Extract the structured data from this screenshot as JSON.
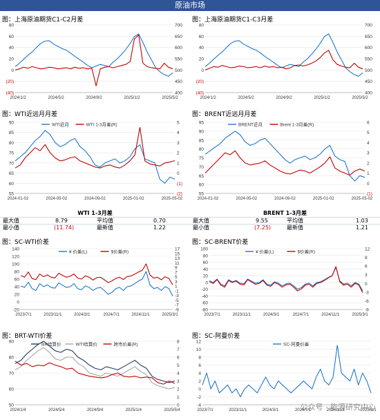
{
  "page_title": "原油市场",
  "colors": {
    "blue": "#1f77c9",
    "red": "#c00000",
    "navy": "#203864",
    "grey": "#a6a6a6",
    "gridblue": "#2f5597",
    "band": "#2f5597"
  },
  "watermark": "公众号 · 能源研究中心",
  "stats": [
    {
      "title": "WTI 1-3月差",
      "rows": [
        {
          "l1": "最大值",
          "v1": "8.79",
          "l2": "平均值",
          "v2": "0.70"
        },
        {
          "l1": "最小值",
          "v1": "(11.74)",
          "l2": "最新值",
          "v2": "1.22"
        }
      ]
    },
    {
      "title": "BRENT 1-3月差",
      "rows": [
        {
          "l1": "最大值",
          "v1": "9.55",
          "l2": "平均值",
          "v2": "1.03"
        },
        {
          "l1": "最小值",
          "v1": "(7.25)",
          "l2": "最新值",
          "v2": "1.21"
        }
      ]
    }
  ],
  "chart_data": [
    {
      "id": "c1",
      "type": "line",
      "title": "图：上海原油期货C1-C2月差",
      "x_ticks": [
        "2024/1/2",
        "2024/5/2",
        "2024/9/2",
        "2025/1/2",
        "2025/5/2"
      ],
      "y_left_ticks": [
        "80",
        "60",
        "40",
        "20",
        "0",
        "(20)",
        "(40)"
      ],
      "ylim_left": [
        -40,
        80
      ],
      "y_right_ticks": [
        "700",
        "650",
        "600",
        "550",
        "500",
        "450",
        "400"
      ],
      "ylim_right": [
        400,
        700
      ],
      "series": [
        {
          "axis": "right",
          "color": "blue",
          "values": [
            515,
            530,
            548,
            565,
            580,
            600,
            618,
            628,
            630,
            615,
            605,
            595,
            588,
            575,
            560,
            548,
            535,
            520,
            510,
            518,
            525,
            520,
            515,
            535,
            550,
            570,
            592,
            618,
            648,
            660,
            622,
            580,
            545,
            510,
            492,
            480,
            472,
            488
          ]
        },
        {
          "axis": "left",
          "color": "red",
          "values": [
            0,
            2,
            5,
            3,
            6,
            4,
            2,
            3,
            5,
            4,
            2,
            3,
            4,
            2,
            5,
            3,
            4,
            2,
            3,
            -28,
            2,
            5,
            6,
            4,
            6,
            8,
            10,
            15,
            55,
            62,
            12,
            6,
            4,
            3,
            2,
            12,
            5,
            2
          ]
        }
      ]
    },
    {
      "id": "c2",
      "type": "line",
      "title": "图：上海原油期货C1-C3月差",
      "x_ticks": [
        "2024/1/2",
        "2024/5/2",
        "2024/9/2",
        "2025/1/2",
        "2025/5/2"
      ],
      "y_left_ticks": [
        "80",
        "60",
        "40",
        "20",
        "0",
        "(20)",
        "(40)"
      ],
      "ylim_left": [
        -40,
        80
      ],
      "y_right_ticks": [
        "700",
        "650",
        "600",
        "550",
        "500",
        "450",
        "400"
      ],
      "ylim_right": [
        400,
        700
      ],
      "series": [
        {
          "axis": "right",
          "color": "blue",
          "values": [
            515,
            530,
            548,
            565,
            580,
            600,
            618,
            628,
            630,
            615,
            605,
            595,
            588,
            575,
            560,
            548,
            535,
            520,
            510,
            518,
            525,
            520,
            515,
            535,
            550,
            570,
            592,
            618,
            648,
            660,
            622,
            580,
            545,
            510,
            492,
            480,
            472,
            488
          ]
        },
        {
          "axis": "left",
          "color": "red",
          "values": [
            0,
            3,
            6,
            5,
            8,
            6,
            4,
            5,
            7,
            6,
            4,
            5,
            6,
            4,
            7,
            5,
            6,
            4,
            5,
            2,
            4,
            8,
            9,
            7,
            9,
            12,
            16,
            22,
            30,
            35,
            18,
            10,
            7,
            5,
            4,
            12,
            5,
            2
          ]
        }
      ]
    },
    {
      "id": "c3",
      "type": "line",
      "title": "图：WTI近远月月差",
      "x_ticks": [
        "2024-01-02",
        "2024-05-02",
        "2024-09-02",
        "2025-01-02",
        "2025-05-02"
      ],
      "y_left_ticks": [
        "90",
        "85",
        "80",
        "75",
        "70",
        "65",
        "60",
        "55"
      ],
      "ylim_left": [
        55,
        90
      ],
      "y_right_ticks": [
        "5",
        "4",
        "3",
        "2",
        "1",
        "0",
        "(1)",
        "(2)"
      ],
      "ylim_right": [
        -2,
        5
      ],
      "legend": [
        "WTI近月",
        "WTI 1-3月差(R)"
      ],
      "series": [
        {
          "axis": "left",
          "color": "blue",
          "values": [
            71,
            73,
            75,
            78,
            81,
            83,
            86,
            84,
            80,
            78,
            79,
            81,
            82,
            78,
            76,
            73,
            69,
            68,
            70,
            71,
            72,
            70,
            71,
            73,
            77,
            79,
            72,
            71,
            70,
            62,
            60,
            63,
            62
          ]
        },
        {
          "axis": "right",
          "color": "red",
          "values": [
            0.5,
            0.8,
            1.5,
            2.0,
            2.5,
            2.2,
            2.8,
            2.0,
            1.5,
            1.2,
            1.3,
            1.5,
            1.6,
            1.2,
            1.0,
            0.8,
            0.6,
            0.5,
            0.7,
            0.8,
            0.6,
            0.5,
            0.8,
            1.2,
            1.8,
            4.5,
            1.2,
            0.9,
            0.8,
            0.7,
            1.0,
            1.1,
            1.22
          ]
        }
      ]
    },
    {
      "id": "c4",
      "type": "line",
      "title": "图：BRENT近远月月差",
      "x_ticks": [
        "2024-01-02",
        "2024-05-02",
        "2024-09-02",
        "2025-01-02",
        "2025-05-02"
      ],
      "y_left_ticks": [
        "95",
        "90",
        "85",
        "80",
        "75",
        "70",
        "65",
        "60",
        "55"
      ],
      "ylim_left": [
        55,
        95
      ],
      "y_right_ticks": [
        "6",
        "5",
        "4",
        "3",
        "2",
        "1",
        "0",
        "(1)"
      ],
      "ylim_right": [
        -1,
        6
      ],
      "legend": [
        "BRENT近月",
        "Brent 1-3月差(R)"
      ],
      "series": [
        {
          "axis": "left",
          "color": "blue",
          "values": [
            77,
            79,
            81,
            83,
            86,
            88,
            90,
            88,
            84,
            82,
            83,
            85,
            86,
            83,
            80,
            77,
            74,
            72,
            74,
            75,
            76,
            74,
            75,
            77,
            80,
            82,
            76,
            74,
            73,
            65,
            62,
            65,
            64
          ]
        },
        {
          "axis": "right",
          "color": "red",
          "values": [
            1.0,
            1.5,
            2.0,
            2.5,
            3.0,
            2.8,
            3.2,
            2.5,
            2.0,
            1.8,
            1.9,
            2.0,
            2.2,
            1.8,
            1.5,
            1.2,
            1.0,
            0.9,
            1.1,
            1.3,
            1.2,
            1.0,
            1.3,
            1.6,
            2.0,
            2.6,
            1.5,
            1.2,
            1.0,
            0.8,
            1.2,
            1.4,
            1.21
          ]
        }
      ]
    },
    {
      "id": "c5",
      "type": "line",
      "title": "图：SC-WTI价差",
      "x_ticks": [
        "2023/7/1",
        "2023/11/1",
        "2024/3/1",
        "2024/7/1",
        "2024/11/1",
        "2025/3/1"
      ],
      "y_left_ticks": [
        "140",
        "120",
        "100",
        "80",
        "60",
        "40",
        "20",
        "0",
        "-20"
      ],
      "ylim_left": [
        -20,
        140
      ],
      "y_right_ticks": [
        "17",
        "15",
        "13",
        "11",
        "9",
        "7",
        "5",
        "3",
        "1",
        "-1",
        "-3",
        "-5",
        "-7",
        "-9"
      ],
      "ylim_right": [
        -9,
        17
      ],
      "legend": [
        "¥ 价差(L)",
        "$价差(R)"
      ],
      "series": [
        {
          "axis": "left",
          "color": "blue",
          "values": [
            42,
            38,
            52,
            35,
            30,
            48,
            40,
            45,
            38,
            36,
            50,
            44,
            38,
            40,
            48,
            35,
            32,
            42,
            38,
            30,
            36,
            38,
            30,
            20,
            25,
            35,
            38,
            30,
            40,
            42,
            48,
            55,
            60,
            80,
            45,
            35,
            38,
            30,
            40,
            35,
            15
          ]
        },
        {
          "axis": "right",
          "color": "red",
          "values": [
            5.5,
            4.8,
            7.0,
            4.2,
            3.8,
            6.2,
            5.0,
            5.8,
            4.8,
            4.5,
            6.5,
            5.6,
            4.8,
            5.2,
            6.2,
            4.4,
            4.0,
            5.4,
            4.8,
            3.6,
            4.6,
            4.8,
            3.7,
            2.5,
            3.2,
            4.3,
            4.8,
            3.8,
            5.1,
            5.3,
            6.1,
            7.0,
            7.8,
            10.5,
            5.8,
            4.4,
            4.8,
            3.7,
            5.0,
            4.3,
            1.5
          ]
        }
      ]
    },
    {
      "id": "c6",
      "type": "line",
      "title": "图：SC-BRENT价差",
      "x_ticks": [
        "2023/7/1",
        "2023/11/1",
        "2024/3/1",
        "2024/7/1",
        "2024/11/1",
        "2025/3/1"
      ],
      "y_left_ticks": [
        "100",
        "80",
        "60",
        "40",
        "20",
        "0",
        "-20",
        "-40",
        "-60",
        "-80"
      ],
      "ylim_left": [
        -80,
        100
      ],
      "y_right_ticks": [
        "12",
        "9",
        "6",
        "3",
        "0",
        "-3",
        "-6",
        "-9"
      ],
      "ylim_right": [
        -9,
        12
      ],
      "legend": [
        "¥ 价差(L)",
        "$价差(R)"
      ],
      "series": [
        {
          "axis": "left",
          "color": "blue",
          "values": [
            5,
            0,
            10,
            -5,
            -10,
            8,
            2,
            6,
            -2,
            -4,
            10,
            4,
            -2,
            0,
            8,
            -5,
            -8,
            2,
            -2,
            -10,
            -4,
            -2,
            -10,
            -20,
            -15,
            -5,
            -2,
            -10,
            0,
            2,
            8,
            15,
            20,
            45,
            5,
            -5,
            -2,
            -10,
            0,
            -5,
            -25
          ]
        },
        {
          "axis": "right",
          "color": "red",
          "values": [
            0.6,
            0,
            1.3,
            -0.6,
            -1.3,
            1.0,
            0.3,
            0.8,
            -0.3,
            -0.5,
            1.3,
            0.5,
            -0.3,
            0,
            1.0,
            -0.6,
            -1.0,
            0.3,
            -0.3,
            -1.3,
            -0.5,
            -0.3,
            -1.3,
            -2.6,
            -1.9,
            -0.6,
            -0.3,
            -1.3,
            0,
            0.3,
            1.0,
            1.9,
            2.6,
            5.8,
            0.6,
            -0.6,
            -0.3,
            -1.3,
            0,
            -0.6,
            -3.2
          ]
        }
      ]
    },
    {
      "id": "c7",
      "type": "line",
      "title": "图：BRT-WTI价差",
      "x_ticks": [
        "2024/1/4",
        "2024/5/4",
        "2024/9/4",
        "2025/1/4",
        "2025/5/4"
      ],
      "y_left_ticks": [
        "90",
        "80",
        "70",
        "60",
        "50"
      ],
      "ylim_left": [
        50,
        90
      ],
      "y_right_ticks": [
        "8",
        "7",
        "6",
        "5",
        "4",
        "3",
        "2",
        "1",
        "0"
      ],
      "ylim_right": [
        0,
        8
      ],
      "legend": [
        "BR结算价",
        "WTI结算价",
        "跨市价差(R)"
      ],
      "series": [
        {
          "axis": "left",
          "color": "navy",
          "values": [
            76,
            78,
            82,
            85,
            88,
            90,
            87,
            84,
            83,
            85,
            84,
            80,
            78,
            75,
            73,
            72,
            74,
            73,
            72,
            74,
            76,
            78,
            75,
            73,
            68,
            66,
            65,
            64,
            65
          ]
        },
        {
          "axis": "left",
          "color": "grey",
          "values": [
            72,
            74,
            78,
            81,
            84,
            86,
            83,
            79,
            78,
            80,
            80,
            76,
            74,
            70,
            69,
            68,
            70,
            69,
            68,
            70,
            72,
            74,
            71,
            69,
            64,
            62,
            61,
            60,
            61
          ]
        },
        {
          "axis": "right",
          "color": "red",
          "values": [
            5.5,
            5.0,
            5.2,
            4.8,
            5.0,
            4.9,
            5.3,
            5.0,
            4.8,
            4.5,
            4.6,
            4.0,
            3.8,
            3.6,
            3.5,
            3.4,
            3.5,
            3.8,
            4.0,
            3.6,
            3.5,
            3.6,
            3.4,
            3.5,
            3.4,
            2.8,
            2.6,
            3.0,
            2.7
          ]
        }
      ]
    },
    {
      "id": "c8",
      "type": "line",
      "title": "图：SC-阿曼价差",
      "x_ticks": [
        "2023/7/1",
        "2023/11/1",
        "2024/3/1",
        "2024/7/1",
        "2024/11/1",
        "2025/3/1"
      ],
      "y_left_ticks": [
        "12",
        "10",
        "8",
        "6",
        "4",
        "2",
        "0",
        "-2",
        "-4"
      ],
      "ylim_left": [
        -4,
        12
      ],
      "legend": [
        "SC-阿曼价差"
      ],
      "series": [
        {
          "axis": "left",
          "color": "blue",
          "values": [
            1,
            4,
            0,
            2,
            -1,
            0,
            1,
            -1,
            0,
            -2,
            0,
            1,
            0,
            -1,
            1,
            3,
            1,
            0,
            2,
            1,
            0,
            -1,
            0,
            1,
            2,
            1,
            0,
            3,
            5,
            2,
            1,
            3,
            11,
            4,
            3,
            2,
            5,
            1,
            4,
            2,
            -1
          ]
        }
      ]
    }
  ]
}
